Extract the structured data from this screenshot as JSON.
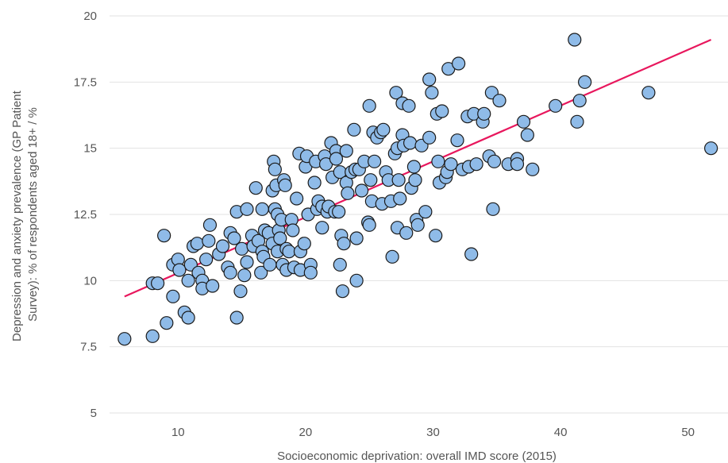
{
  "chart_data": {
    "type": "scatter",
    "xlabel": "Socioeconomic deprivation: overall IMD score (2015)",
    "ylabel_line1": "Depression and anxiety prevalence (GP Patient",
    "ylabel_line2": "Survey): % of respondents aged 18+ / %",
    "xlim": [
      5,
      52
    ],
    "ylim": [
      5,
      20
    ],
    "x_ticks": [
      10,
      20,
      30,
      40,
      50
    ],
    "y_ticks": [
      5,
      7.5,
      10,
      12.5,
      15,
      17.5,
      20
    ],
    "x_tick_labels": [
      "10",
      "20",
      "30",
      "40",
      "50"
    ],
    "y_tick_labels": [
      "5",
      "7.5",
      "10",
      "12.5",
      "15",
      "17.5",
      "20"
    ],
    "grid": "horizontal",
    "trendline": {
      "x": [
        5.8,
        51.8
      ],
      "y": [
        9.4,
        19.1
      ]
    },
    "colors": {
      "point_fill": "#8fbbe8",
      "point_stroke": "#1a1a1a",
      "trendline": "#e8175d",
      "grid": "#e2e2e2"
    },
    "points": [
      [
        5.8,
        7.8
      ],
      [
        8.0,
        7.9
      ],
      [
        8.0,
        9.9
      ],
      [
        8.4,
        9.9
      ],
      [
        8.9,
        11.7
      ],
      [
        9.1,
        8.4
      ],
      [
        9.6,
        10.6
      ],
      [
        9.6,
        9.4
      ],
      [
        10.0,
        10.8
      ],
      [
        10.1,
        10.4
      ],
      [
        10.5,
        8.8
      ],
      [
        10.8,
        8.6
      ],
      [
        10.8,
        10.0
      ],
      [
        11.0,
        10.6
      ],
      [
        11.2,
        11.3
      ],
      [
        11.5,
        11.4
      ],
      [
        11.6,
        10.3
      ],
      [
        11.9,
        10.0
      ],
      [
        11.9,
        9.7
      ],
      [
        12.2,
        10.8
      ],
      [
        12.4,
        11.5
      ],
      [
        12.5,
        12.1
      ],
      [
        12.7,
        9.8
      ],
      [
        13.2,
        11.0
      ],
      [
        13.5,
        11.3
      ],
      [
        13.9,
        10.5
      ],
      [
        14.1,
        10.3
      ],
      [
        14.1,
        11.8
      ],
      [
        14.4,
        11.6
      ],
      [
        14.6,
        12.6
      ],
      [
        14.6,
        8.6
      ],
      [
        14.9,
        9.6
      ],
      [
        15.0,
        11.2
      ],
      [
        15.2,
        10.2
      ],
      [
        15.4,
        12.7
      ],
      [
        15.4,
        10.7
      ],
      [
        15.8,
        11.7
      ],
      [
        15.9,
        11.3
      ],
      [
        16.1,
        13.5
      ],
      [
        16.3,
        11.5
      ],
      [
        16.5,
        10.3
      ],
      [
        16.6,
        12.7
      ],
      [
        16.6,
        11.1
      ],
      [
        16.7,
        10.9
      ],
      [
        16.8,
        11.9
      ],
      [
        17.1,
        11.8
      ],
      [
        17.2,
        10.6
      ],
      [
        17.4,
        11.4
      ],
      [
        17.4,
        13.4
      ],
      [
        17.5,
        14.5
      ],
      [
        17.6,
        14.2
      ],
      [
        17.6,
        12.7
      ],
      [
        17.7,
        13.6
      ],
      [
        17.8,
        12.5
      ],
      [
        17.8,
        11.1
      ],
      [
        17.9,
        11.9
      ],
      [
        18.0,
        11.6
      ],
      [
        18.1,
        12.3
      ],
      [
        18.2,
        10.6
      ],
      [
        18.3,
        13.8
      ],
      [
        18.4,
        13.6
      ],
      [
        18.5,
        10.4
      ],
      [
        18.5,
        11.2
      ],
      [
        18.7,
        11.1
      ],
      [
        18.9,
        12.3
      ],
      [
        19.0,
        11.9
      ],
      [
        19.1,
        10.5
      ],
      [
        19.3,
        13.1
      ],
      [
        19.5,
        14.8
      ],
      [
        19.6,
        11.1
      ],
      [
        19.6,
        10.4
      ],
      [
        19.9,
        11.4
      ],
      [
        20.0,
        14.3
      ],
      [
        20.1,
        14.7
      ],
      [
        20.2,
        12.5
      ],
      [
        20.4,
        10.6
      ],
      [
        20.4,
        10.3
      ],
      [
        20.7,
        13.7
      ],
      [
        20.8,
        14.5
      ],
      [
        20.9,
        12.7
      ],
      [
        21.0,
        13.0
      ],
      [
        21.3,
        12.8
      ],
      [
        21.3,
        12.0
      ],
      [
        21.5,
        14.7
      ],
      [
        21.6,
        14.4
      ],
      [
        21.7,
        12.6
      ],
      [
        21.8,
        12.8
      ],
      [
        22.0,
        15.2
      ],
      [
        22.1,
        13.9
      ],
      [
        22.3,
        12.6
      ],
      [
        22.4,
        14.9
      ],
      [
        22.4,
        14.6
      ],
      [
        22.6,
        12.6
      ],
      [
        22.7,
        10.6
      ],
      [
        22.7,
        14.1
      ],
      [
        22.8,
        11.7
      ],
      [
        22.9,
        9.6
      ],
      [
        23.0,
        11.4
      ],
      [
        23.2,
        14.9
      ],
      [
        23.2,
        13.7
      ],
      [
        23.3,
        13.3
      ],
      [
        23.6,
        14.1
      ],
      [
        23.8,
        15.7
      ],
      [
        23.9,
        14.2
      ],
      [
        24.0,
        11.6
      ],
      [
        24.0,
        10.0
      ],
      [
        24.2,
        14.2
      ],
      [
        24.4,
        13.4
      ],
      [
        24.6,
        14.5
      ],
      [
        24.9,
        12.2
      ],
      [
        25.0,
        16.6
      ],
      [
        25.0,
        12.1
      ],
      [
        25.1,
        13.8
      ],
      [
        25.2,
        13.0
      ],
      [
        25.3,
        15.6
      ],
      [
        25.4,
        14.5
      ],
      [
        25.6,
        15.4
      ],
      [
        25.9,
        15.6
      ],
      [
        26.0,
        12.9
      ],
      [
        26.1,
        15.7
      ],
      [
        26.3,
        14.1
      ],
      [
        26.5,
        13.8
      ],
      [
        26.7,
        13.0
      ],
      [
        26.8,
        10.9
      ],
      [
        27.0,
        14.8
      ],
      [
        27.1,
        17.1
      ],
      [
        27.2,
        15.0
      ],
      [
        27.2,
        12.0
      ],
      [
        27.3,
        13.8
      ],
      [
        27.4,
        13.1
      ],
      [
        27.6,
        16.7
      ],
      [
        27.6,
        15.5
      ],
      [
        27.7,
        15.1
      ],
      [
        27.9,
        11.8
      ],
      [
        28.1,
        16.6
      ],
      [
        28.2,
        15.2
      ],
      [
        28.3,
        13.5
      ],
      [
        28.5,
        14.3
      ],
      [
        28.6,
        13.8
      ],
      [
        28.7,
        12.3
      ],
      [
        28.8,
        12.1
      ],
      [
        29.1,
        15.1
      ],
      [
        29.4,
        12.6
      ],
      [
        29.7,
        17.6
      ],
      [
        29.7,
        15.4
      ],
      [
        29.9,
        17.1
      ],
      [
        30.2,
        11.7
      ],
      [
        30.3,
        16.3
      ],
      [
        30.4,
        14.5
      ],
      [
        30.5,
        13.7
      ],
      [
        30.7,
        16.4
      ],
      [
        31.0,
        13.9
      ],
      [
        31.1,
        14.1
      ],
      [
        31.2,
        18.0
      ],
      [
        31.4,
        14.4
      ],
      [
        31.9,
        15.3
      ],
      [
        32.0,
        18.2
      ],
      [
        32.3,
        14.2
      ],
      [
        32.7,
        16.2
      ],
      [
        32.8,
        14.3
      ],
      [
        33.0,
        11.0
      ],
      [
        33.2,
        16.3
      ],
      [
        33.4,
        14.4
      ],
      [
        33.9,
        16.0
      ],
      [
        34.0,
        16.3
      ],
      [
        34.4,
        14.7
      ],
      [
        34.6,
        17.1
      ],
      [
        34.7,
        12.7
      ],
      [
        34.8,
        14.5
      ],
      [
        35.2,
        16.8
      ],
      [
        35.9,
        14.4
      ],
      [
        36.6,
        14.6
      ],
      [
        36.6,
        14.4
      ],
      [
        37.1,
        16.0
      ],
      [
        37.4,
        15.5
      ],
      [
        37.8,
        14.2
      ],
      [
        39.6,
        16.6
      ],
      [
        41.1,
        19.1
      ],
      [
        41.3,
        16.0
      ],
      [
        41.5,
        16.8
      ],
      [
        41.9,
        17.5
      ],
      [
        46.9,
        17.1
      ],
      [
        51.8,
        15.0
      ]
    ]
  }
}
